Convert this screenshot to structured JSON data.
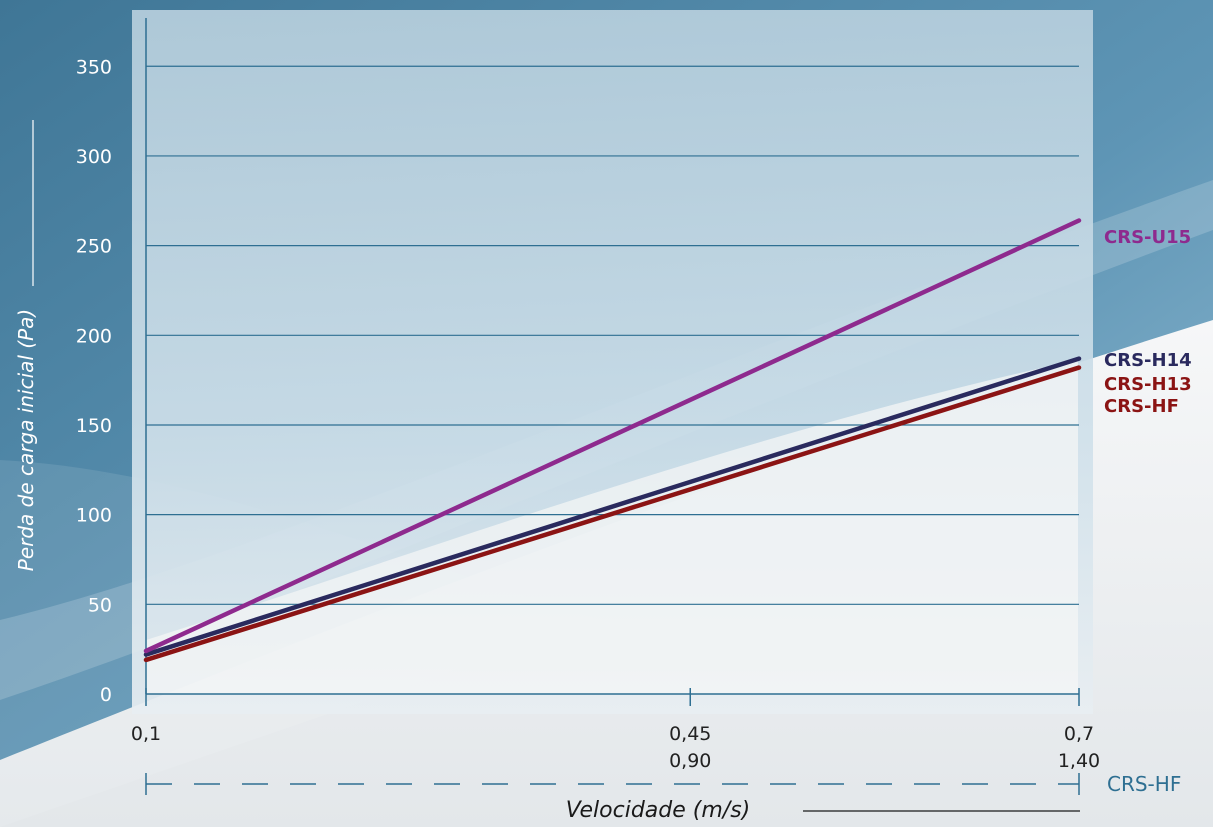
{
  "chart_data": {
    "type": "line",
    "xlabel": "Velocidade (m/s)",
    "ylabel": "Perda de carga inicial (Pa)",
    "x_ticks": [
      "0,1",
      "0,45",
      "0,7"
    ],
    "x_ticks_secondary": [
      "",
      "0,90",
      "1,40"
    ],
    "secondary_axis_label": "CRS-HF",
    "y_ticks": [
      "0",
      "50",
      "100",
      "150",
      "200",
      "250",
      "300",
      "350"
    ],
    "xlim": [
      0.1,
      0.7
    ],
    "ylim": [
      0,
      380
    ],
    "grid": true,
    "series": [
      {
        "name": "CRS-U15",
        "color": "#8e2a8e",
        "x": [
          0.1,
          0.7
        ],
        "y": [
          24,
          264
        ]
      },
      {
        "name": "CRS-H14",
        "color": "#2a2a5e",
        "x": [
          0.1,
          0.7
        ],
        "y": [
          22,
          187
        ]
      },
      {
        "name": "CRS-H13",
        "color": "#8b1414",
        "x": [
          0.1,
          0.7
        ],
        "y": [
          19,
          182
        ]
      },
      {
        "name": "CRS-HF",
        "color": "#8b1414",
        "x": [
          0.1,
          0.7
        ],
        "y": [
          19,
          182
        ]
      }
    ]
  },
  "colors": {
    "grid": "#2e6f92",
    "axis": "#2e6f92",
    "tick_text": "#222222",
    "panel_top": "#bcd2df",
    "panel_bottom": "#f1f3f5",
    "background_dark": "#3a6e8c",
    "secondary_label": "#2e6f92"
  }
}
